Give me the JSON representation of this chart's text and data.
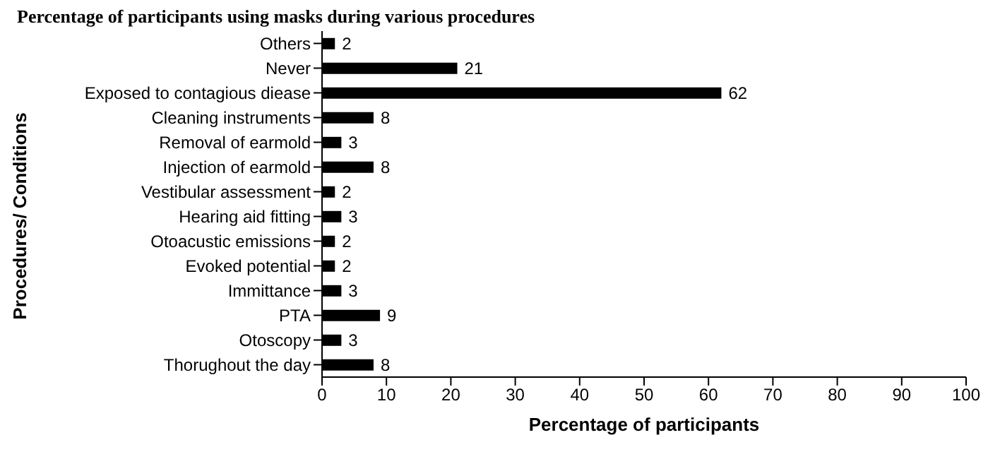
{
  "chart_data": {
    "type": "bar",
    "orientation": "horizontal",
    "title": "Percentage of participants using masks during various procedures",
    "xlabel": "Percentage of participants",
    "ylabel": "Procedures/ Conditions",
    "categories": [
      "Others",
      "Never",
      "Exposed to contagious diease",
      "Cleaning instruments",
      "Removal of earmold",
      "Injection of earmold",
      "Vestibular assessment",
      "Hearing aid fitting",
      "Otoacustic emissions",
      "Evoked potential",
      "Immittance",
      "PTA",
      "Otoscopy",
      "Thorughout the day"
    ],
    "values": [
      2,
      21,
      62,
      8,
      3,
      8,
      2,
      3,
      2,
      2,
      3,
      9,
      3,
      8
    ],
    "color": "#000000",
    "xlim": [
      0,
      100
    ],
    "xticks": [
      0,
      10,
      20,
      30,
      40,
      50,
      60,
      70,
      80,
      90,
      100
    ],
    "data_labels": true,
    "grid": false
  }
}
